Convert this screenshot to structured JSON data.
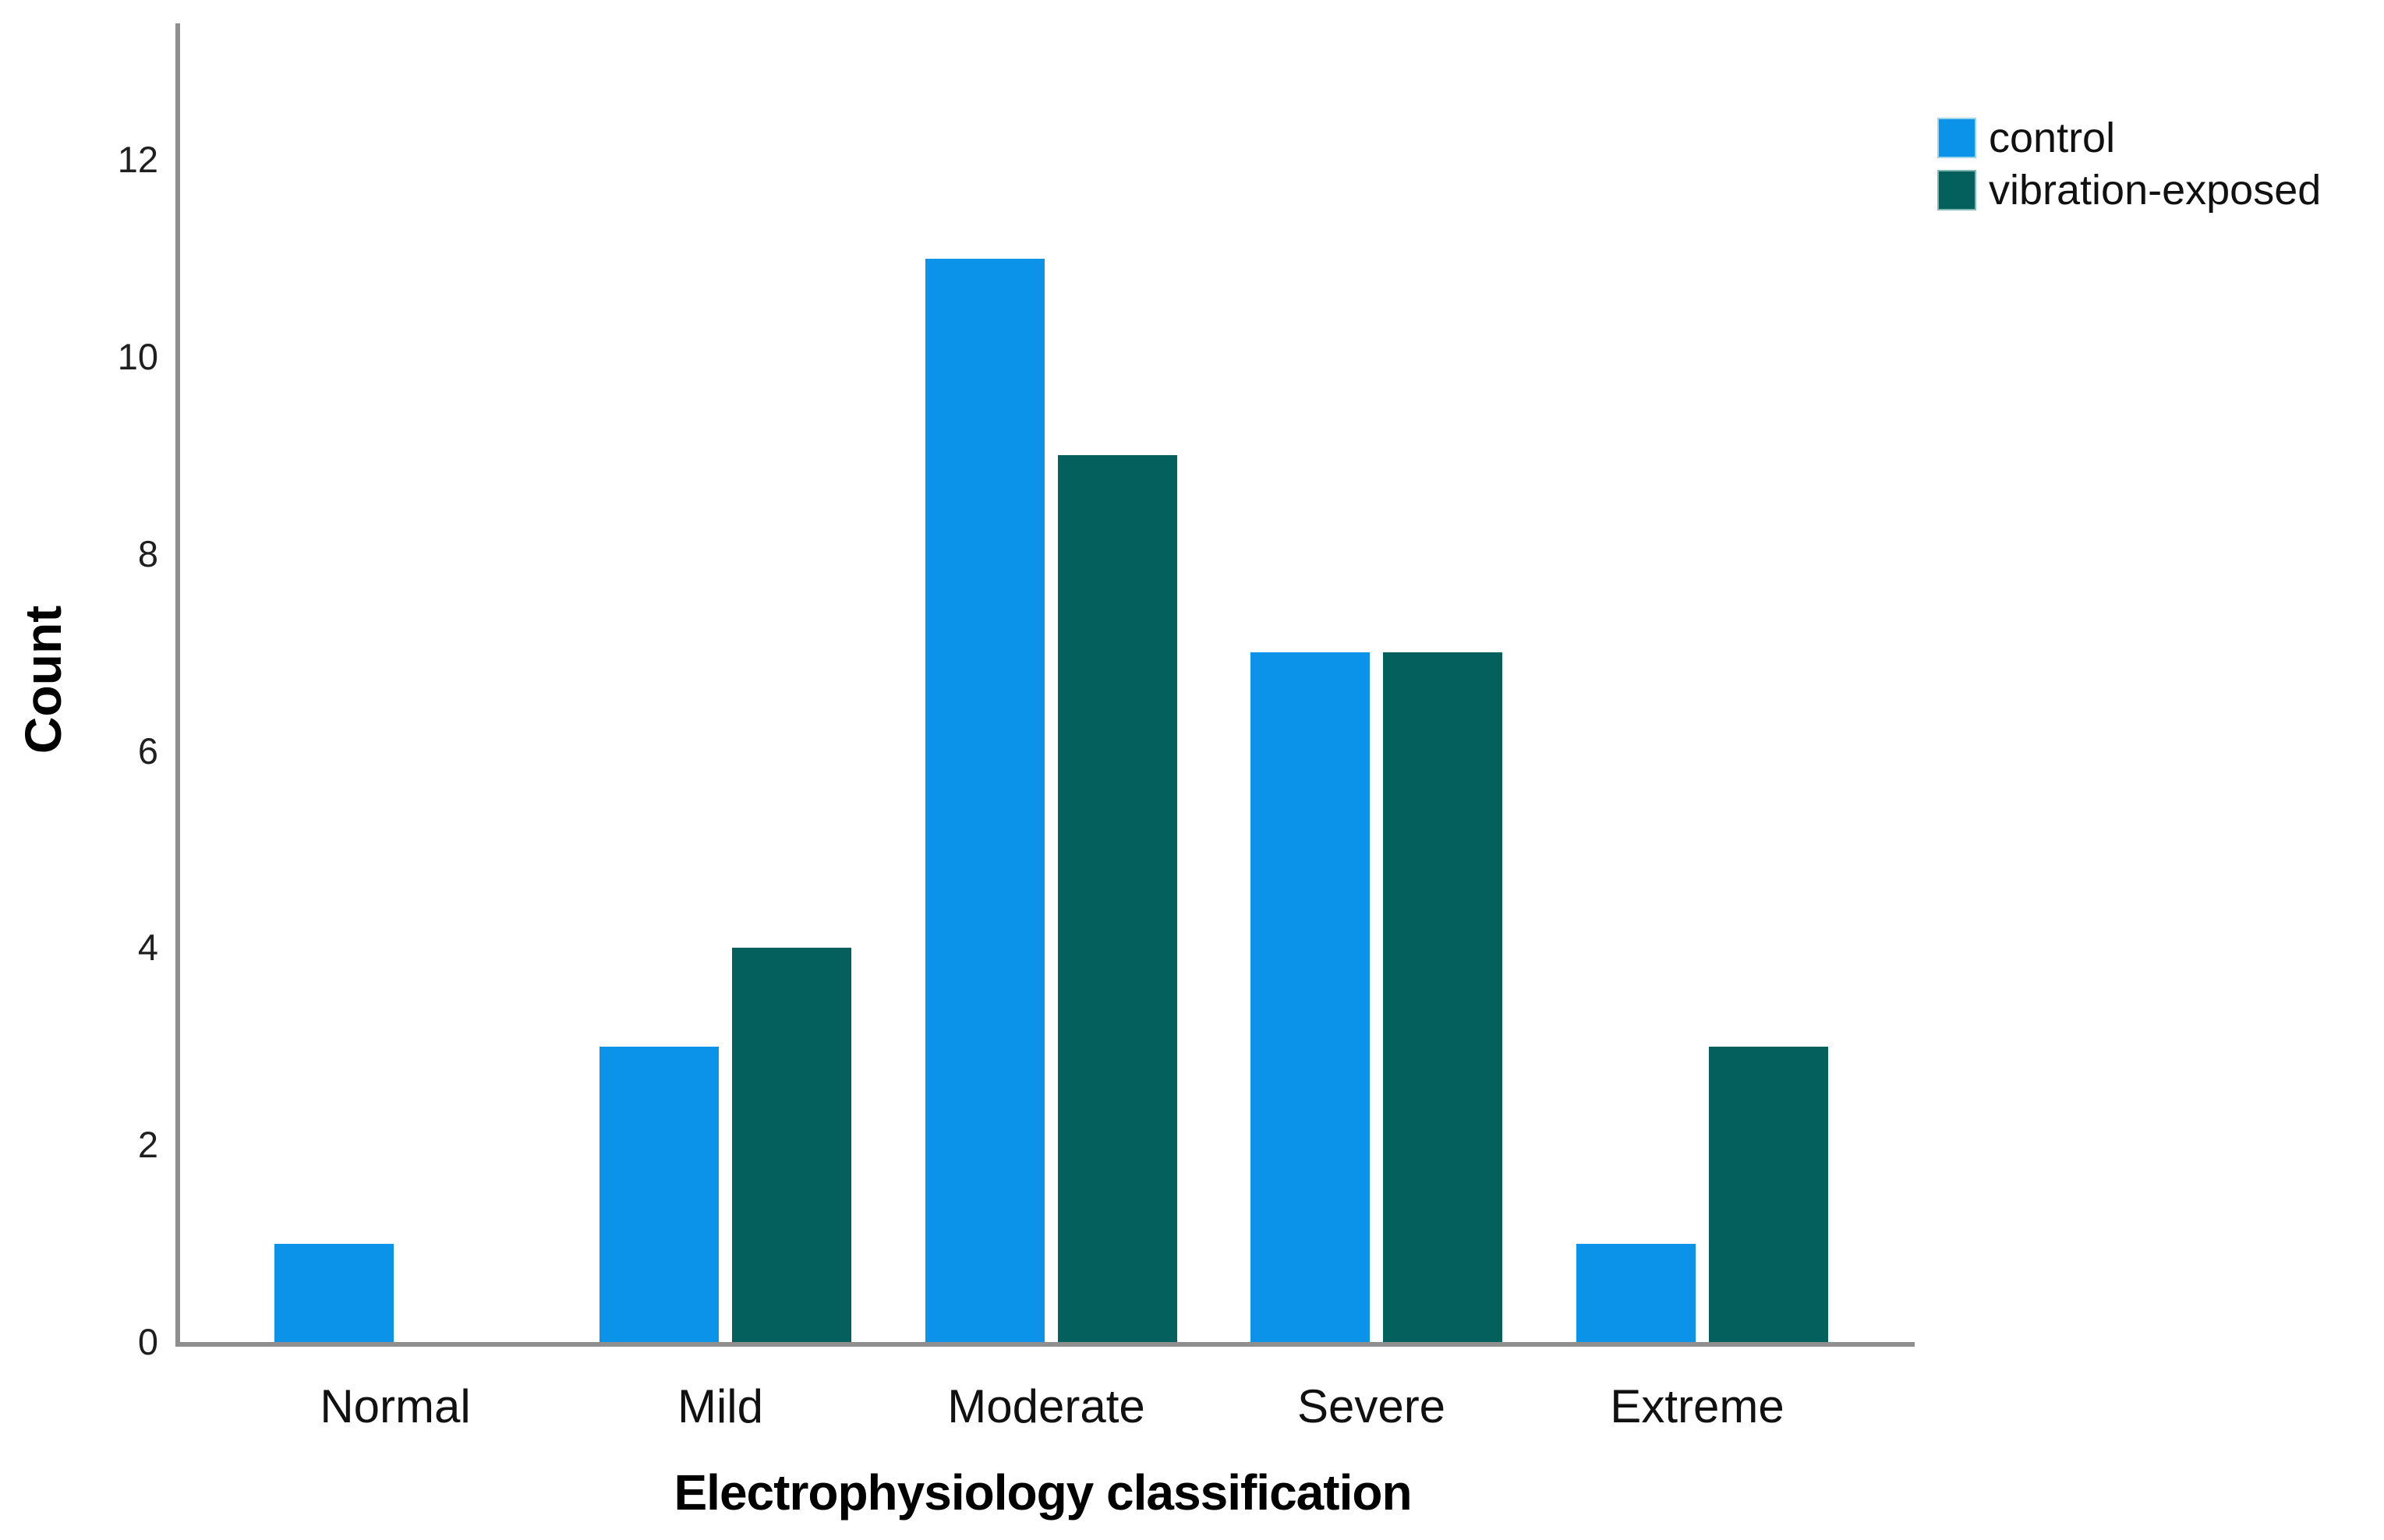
{
  "figure": {
    "background_color": "#ffffff",
    "axis_line_color": "#8f8f8f"
  },
  "chart_data": {
    "type": "bar",
    "title": "",
    "categories": [
      "Normal",
      "Mild",
      "Moderate",
      "Severe",
      "Extreme"
    ],
    "series": [
      {
        "name": "control",
        "color": "#0a93e8",
        "values": [
          1,
          3,
          11,
          7,
          1
        ]
      },
      {
        "name": "vibration-exposed",
        "color": "#04605c",
        "values": [
          0,
          4,
          9,
          7,
          3
        ]
      }
    ],
    "xlabel": "Electrophysiology classification",
    "ylabel": "Count",
    "ylim": [
      0,
      13.4
    ],
    "yticks": [
      0,
      2,
      4,
      6,
      8,
      10,
      12
    ],
    "grid": false,
    "legend_position": "top-right"
  }
}
